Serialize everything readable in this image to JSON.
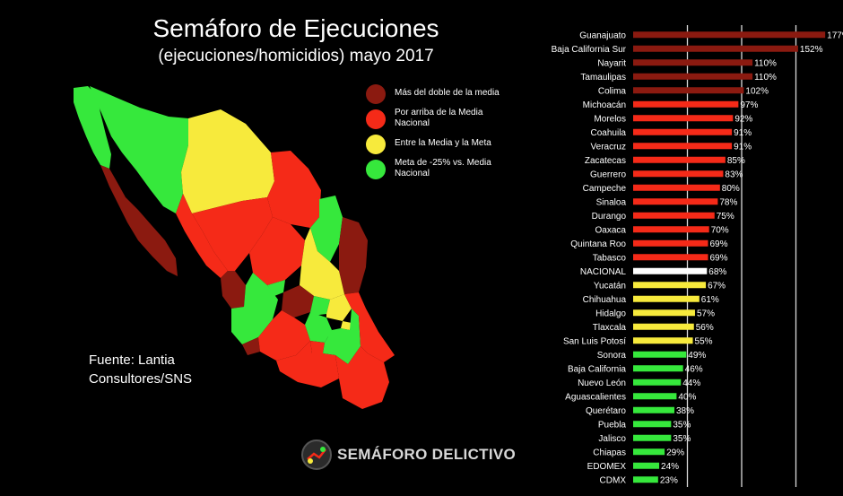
{
  "title": "Semáforo de Ejecuciones",
  "subtitle": "(ejecuciones/homicidios) mayo 2017",
  "legend": [
    {
      "label": "Más del doble de la media",
      "color": "#8b1a10"
    },
    {
      "label": "Por arriba de la Media Nacional",
      "color": "#f52a18"
    },
    {
      "label": "Entre la Media y la Meta",
      "color": "#f7ea3c"
    },
    {
      "label": "Meta de -25% vs. Media Nacional",
      "color": "#36e83c"
    }
  ],
  "source": {
    "line1": "Fuente: Lantia",
    "line2": "Consultores/SNS"
  },
  "logo": {
    "text": "SEMÁFORO DELICTIVO"
  },
  "colors": {
    "dark_red": "#8b1a10",
    "red": "#f52a18",
    "yellow": "#f7ea3c",
    "green": "#36e83c",
    "white": "#ffffff",
    "background": "#000000"
  },
  "chart_data": {
    "type": "bar",
    "orientation": "horizontal",
    "categories": [
      "Guanajuato",
      "Baja California Sur",
      "Nayarit",
      "Tamaulipas",
      "Colima",
      "Michoacán",
      "Morelos",
      "Coahuila",
      "Veracruz",
      "Zacatecas",
      "Guerrero",
      "Campeche",
      "Sinaloa",
      "Durango",
      "Oaxaca",
      "Quintana Roo",
      "Tabasco",
      "NACIONAL",
      "Yucatán",
      "Chihuahua",
      "Hidalgo",
      "Tlaxcala",
      "San Luis Potosí",
      "Sonora",
      "Baja California",
      "Nuevo León",
      "Aguascalientes",
      "Querétaro",
      "Puebla",
      "Jalisco",
      "Chiapas",
      "EDOMEX",
      "CDMX"
    ],
    "values": [
      177,
      152,
      110,
      110,
      102,
      97,
      92,
      91,
      91,
      85,
      83,
      80,
      78,
      75,
      70,
      69,
      69,
      68,
      67,
      61,
      57,
      56,
      55,
      49,
      46,
      44,
      40,
      38,
      35,
      35,
      29,
      24,
      23
    ],
    "value_labels": [
      "177%",
      "152%",
      "110%",
      "110%",
      "102%",
      "97%",
      "92%",
      "91%",
      "91%",
      "85%",
      "83%",
      "80%",
      "78%",
      "75%",
      "70%",
      "69%",
      "69%",
      "68%",
      "67%",
      "61%",
      "57%",
      "56%",
      "55%",
      "49%",
      "46%",
      "44%",
      "40%",
      "38%",
      "35%",
      "35%",
      "29%",
      "24%",
      "23%"
    ],
    "bar_colors": [
      "dark_red",
      "dark_red",
      "dark_red",
      "dark_red",
      "dark_red",
      "red",
      "red",
      "red",
      "red",
      "red",
      "red",
      "red",
      "red",
      "red",
      "red",
      "red",
      "red",
      "white",
      "yellow",
      "yellow",
      "yellow",
      "yellow",
      "yellow",
      "green",
      "green",
      "green",
      "green",
      "green",
      "green",
      "green",
      "green",
      "green",
      "green"
    ],
    "xlim": [
      0,
      180
    ],
    "gridlines": [
      50,
      100,
      150
    ],
    "grid": true
  }
}
